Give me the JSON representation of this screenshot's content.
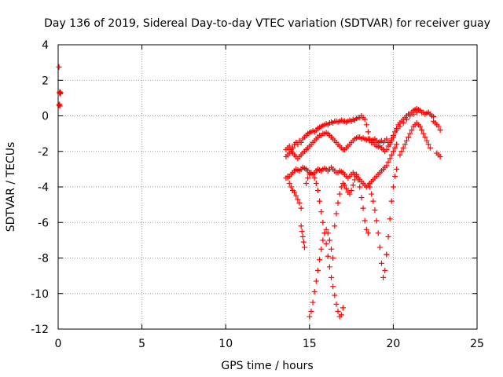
{
  "chart_data": {
    "type": "scatter",
    "title": "Day 136 of 2019, Sidereal Day-to-day VTEC variation (SDTVAR) for receiver guay",
    "xlabel": "GPS time / hours",
    "ylabel": "SDTVAR / TECUs",
    "xlim": [
      0,
      25
    ],
    "ylim": [
      -12,
      4
    ],
    "xticks": [
      0,
      5,
      10,
      15,
      20,
      25
    ],
    "yticks": [
      -12,
      -10,
      -8,
      -6,
      -4,
      -2,
      0,
      2,
      4
    ],
    "grid": true,
    "marker": "+",
    "color": "#ff0000",
    "series": [
      {
        "x": [
          0.05,
          0.08,
          0.1,
          0.12,
          0.15,
          0.05,
          0.08,
          0.1
        ],
        "y": [
          2.75,
          1.3,
          1.35,
          1.25,
          1.3,
          0.6,
          0.65,
          0.55
        ]
      },
      {
        "x": [
          13.6,
          13.7,
          13.8,
          13.9,
          14.0,
          14.1,
          14.2,
          14.3,
          14.4,
          14.5,
          14.6,
          14.7,
          14.8,
          14.9,
          15.0,
          15.1,
          15.2,
          15.3,
          15.4,
          15.5,
          15.6,
          15.7,
          15.8,
          15.9,
          16.0,
          16.1,
          16.2,
          16.3,
          16.4,
          16.5,
          16.6,
          16.7,
          16.8,
          16.9,
          17.0,
          17.1,
          17.2,
          17.3,
          17.4,
          17.5,
          17.6,
          17.7,
          17.8,
          17.9,
          18.0,
          18.1,
          18.2,
          18.3,
          18.4,
          18.5,
          18.6,
          18.7,
          18.8,
          18.9,
          19.0,
          19.1,
          19.2,
          19.3,
          19.4,
          19.5,
          19.6,
          19.7,
          19.8,
          19.9,
          20.0,
          20.1,
          20.2,
          20.3,
          20.4,
          20.5,
          20.6,
          20.7,
          20.8,
          20.9,
          21.0,
          21.1,
          21.2,
          21.3,
          21.4,
          21.5,
          21.6,
          21.7,
          21.8,
          21.9,
          22.0,
          22.1,
          22.2,
          22.3,
          22.4
        ],
        "y": [
          -1.9,
          -1.8,
          -1.7,
          -1.9,
          -1.8,
          -1.6,
          -1.5,
          -1.6,
          -1.4,
          -1.5,
          -1.3,
          -1.2,
          -1.1,
          -1.0,
          -0.95,
          -0.9,
          -0.85,
          -0.9,
          -0.8,
          -0.7,
          -0.65,
          -0.6,
          -0.55,
          -0.5,
          -0.45,
          -0.5,
          -0.4,
          -0.35,
          -0.4,
          -0.3,
          -0.3,
          -0.35,
          -0.3,
          -0.25,
          -0.3,
          -0.3,
          -0.35,
          -0.3,
          -0.25,
          -0.3,
          -0.2,
          -0.25,
          -0.15,
          -0.1,
          -0.1,
          0.0,
          -0.1,
          -0.2,
          -0.5,
          -0.9,
          -1.3,
          -1.4,
          -1.35,
          -1.3,
          -1.4,
          -1.5,
          -1.45,
          -1.4,
          -1.5,
          -1.4,
          -1.3,
          -1.5,
          -1.6,
          -1.4,
          -1.2,
          -0.9,
          -0.7,
          -0.5,
          -0.4,
          -0.3,
          -0.2,
          -0.1,
          0.0,
          0.1,
          0.1,
          0.2,
          0.3,
          0.35,
          0.4,
          0.35,
          0.3,
          0.2,
          0.2,
          0.1,
          0.15,
          0.2,
          0.1,
          0.0,
          -0.05
        ]
      },
      {
        "x": [
          13.6,
          13.7,
          13.8,
          13.9,
          14.0,
          14.1,
          14.2,
          14.3,
          14.4,
          14.5,
          14.6,
          14.7,
          14.8,
          14.9,
          15.0,
          15.1,
          15.2,
          15.3,
          15.4,
          15.5,
          15.6,
          15.7,
          15.8,
          15.9,
          16.0,
          16.1,
          16.2,
          16.3,
          16.4,
          16.5,
          16.6,
          16.7,
          16.8,
          16.9,
          17.0,
          17.1,
          17.2,
          17.3,
          17.4,
          17.5,
          17.6,
          17.7,
          17.8,
          17.9,
          18.0,
          18.1,
          18.2,
          18.3,
          18.4,
          18.5,
          18.6,
          18.7,
          18.8,
          18.9,
          19.0,
          19.1,
          19.2,
          19.3,
          19.4,
          19.5,
          19.6,
          19.7,
          19.8,
          19.9,
          20.0,
          20.2,
          20.4,
          20.6,
          20.8,
          21.0,
          21.2,
          21.4,
          21.6
        ],
        "y": [
          -2.3,
          -2.2,
          -2.1,
          -2.0,
          -2.1,
          -2.2,
          -2.3,
          -2.4,
          -2.3,
          -2.2,
          -2.1,
          -2.0,
          -1.9,
          -1.8,
          -1.7,
          -1.6,
          -1.5,
          -1.4,
          -1.3,
          -1.2,
          -1.1,
          -1.1,
          -1.0,
          -1.0,
          -0.95,
          -1.0,
          -1.1,
          -1.2,
          -1.3,
          -1.4,
          -1.5,
          -1.6,
          -1.7,
          -1.8,
          -1.9,
          -1.9,
          -1.8,
          -1.7,
          -1.6,
          -1.5,
          -1.4,
          -1.3,
          -1.25,
          -1.2,
          -1.2,
          -1.3,
          -1.25,
          -1.3,
          -1.35,
          -1.3,
          -1.4,
          -1.5,
          -1.5,
          -1.6,
          -1.7,
          -1.75,
          -1.7,
          -1.8,
          -1.9,
          -2.0,
          -1.9,
          -1.7,
          -1.5,
          -1.3,
          -1.1,
          -0.8,
          -0.6,
          -0.4,
          -0.2,
          0.0,
          0.1,
          0.2,
          0.3
        ]
      },
      {
        "x": [
          13.7,
          13.8,
          13.9,
          14.0,
          14.1,
          14.2,
          14.3,
          14.4,
          14.5,
          14.6,
          14.7,
          14.8,
          14.9,
          15.0,
          15.1,
          15.2,
          15.3,
          15.4,
          15.5,
          15.6,
          15.7,
          15.8,
          15.9,
          16.0,
          16.1,
          16.2,
          16.3,
          16.4,
          16.5,
          16.6,
          16.7,
          16.8,
          16.9,
          17.0,
          17.1,
          17.2,
          17.3,
          17.4,
          17.5,
          17.6,
          17.7,
          17.8,
          17.9,
          18.0,
          18.1,
          18.2,
          18.3,
          18.4,
          18.5,
          18.6,
          18.7,
          18.8,
          18.9,
          19.0,
          19.1,
          19.2,
          19.3,
          19.4,
          19.5,
          19.6,
          19.7,
          19.8,
          19.9,
          20.0,
          20.1,
          20.2
        ],
        "y": [
          -3.5,
          -3.4,
          -3.3,
          -3.2,
          -3.1,
          -3.0,
          -3.05,
          -3.1,
          -3.0,
          -2.9,
          -2.95,
          -3.0,
          -3.1,
          -3.2,
          -3.25,
          -3.3,
          -3.2,
          -3.1,
          -3.0,
          -3.05,
          -3.1,
          -3.0,
          -2.95,
          -3.0,
          -3.1,
          -3.0,
          -2.9,
          -3.0,
          -3.1,
          -3.2,
          -3.2,
          -3.1,
          -3.15,
          -3.2,
          -3.3,
          -3.4,
          -3.5,
          -3.4,
          -3.3,
          -3.2,
          -3.3,
          -3.4,
          -3.5,
          -3.6,
          -3.7,
          -3.8,
          -3.9,
          -4.0,
          -3.9,
          -3.8,
          -3.7,
          -3.6,
          -3.5,
          -3.4,
          -3.3,
          -3.2,
          -3.1,
          -3.0,
          -2.9,
          -2.8,
          -2.6,
          -2.4,
          -2.2,
          -2.0,
          -1.8,
          -1.6
        ]
      },
      {
        "x": [
          13.6,
          13.7,
          13.8,
          13.9,
          14.0,
          14.1,
          14.2,
          14.3,
          14.4,
          14.5
        ],
        "y": [
          -3.5,
          -3.4,
          -3.8,
          -4.0,
          -4.2,
          -4.3,
          -4.5,
          -4.7,
          -4.9,
          -5.2
        ]
      },
      {
        "x": [
          14.5,
          14.55,
          14.6,
          14.65,
          14.7
        ],
        "y": [
          -6.2,
          -6.5,
          -6.8,
          -7.1,
          -7.4
        ]
      },
      {
        "x": [
          14.8,
          14.9,
          15.0,
          15.1,
          15.2,
          15.3,
          15.4,
          15.5,
          15.6,
          15.7,
          15.8,
          15.9,
          16.0,
          16.1,
          16.2,
          16.3,
          16.4,
          16.5,
          16.6,
          16.7,
          16.8,
          16.9,
          17.0
        ],
        "y": [
          -3.8,
          -3.5,
          -3.3,
          -3.2,
          -3.3,
          -3.5,
          -3.8,
          -4.2,
          -4.8,
          -5.4,
          -6.0,
          -6.6,
          -7.2,
          -7.9,
          -8.5,
          -9.1,
          -9.6,
          -10.1,
          -10.6,
          -11.0,
          -11.3,
          -11.2,
          -10.8
        ]
      },
      {
        "x": [
          15.0,
          15.1,
          15.2,
          15.3,
          15.4,
          15.5,
          15.6,
          15.7,
          15.8,
          15.9,
          16.0,
          16.1,
          16.2,
          16.3,
          16.4
        ],
        "y": [
          -11.3,
          -11.0,
          -10.5,
          -9.9,
          -9.3,
          -8.7,
          -8.1,
          -7.5,
          -7.0,
          -6.6,
          -6.4,
          -6.6,
          -7.0,
          -7.5,
          -8.0
        ]
      },
      {
        "x": [
          16.5,
          16.6,
          16.7,
          16.8,
          16.9,
          17.0,
          17.1,
          17.2,
          17.3,
          17.4,
          17.5,
          17.6,
          17.7,
          17.8
        ],
        "y": [
          -6.2,
          -5.5,
          -4.9,
          -4.4,
          -4.0,
          -3.8,
          -3.9,
          -4.1,
          -4.3,
          -4.4,
          -4.2,
          -3.9,
          -3.6,
          -3.3
        ]
      },
      {
        "x": [
          17.8,
          17.9,
          18.0,
          18.1,
          18.2,
          18.3,
          18.4,
          18.5
        ],
        "y": [
          -3.3,
          -3.6,
          -4.0,
          -4.6,
          -5.2,
          -5.9,
          -6.4,
          -6.6
        ]
      },
      {
        "x": [
          18.6,
          18.7,
          18.8,
          18.9,
          19.0,
          19.1,
          19.2,
          19.3,
          19.4,
          19.5,
          19.6
        ],
        "y": [
          -4.0,
          -4.4,
          -4.8,
          -5.3,
          -5.9,
          -6.6,
          -7.4,
          -8.3,
          -9.1,
          -8.7,
          -7.8
        ]
      },
      {
        "x": [
          19.6,
          19.7,
          19.8,
          19.9,
          20.0,
          20.1,
          20.2
        ],
        "y": [
          -7.8,
          -6.8,
          -5.8,
          -4.8,
          -4.0,
          -3.4,
          -3.0
        ]
      },
      {
        "x": [
          20.4,
          20.5,
          20.6,
          20.7,
          20.8,
          20.9,
          21.0,
          21.1,
          21.2,
          21.3,
          21.4,
          21.5,
          21.6,
          21.7,
          21.8,
          21.9,
          22.0,
          22.1,
          22.2
        ],
        "y": [
          -2.2,
          -2.0,
          -1.8,
          -1.6,
          -1.4,
          -1.2,
          -1.0,
          -0.8,
          -0.6,
          -0.5,
          -0.4,
          -0.5,
          -0.6,
          -0.8,
          -1.0,
          -1.2,
          -1.4,
          -1.6,
          -1.8
        ]
      },
      {
        "x": [
          22.4,
          22.5,
          22.6,
          22.7,
          22.8,
          22.6,
          22.7,
          22.8
        ],
        "y": [
          -0.3,
          -0.4,
          -0.5,
          -0.6,
          -0.8,
          -2.1,
          -2.2,
          -2.3
        ]
      }
    ]
  }
}
